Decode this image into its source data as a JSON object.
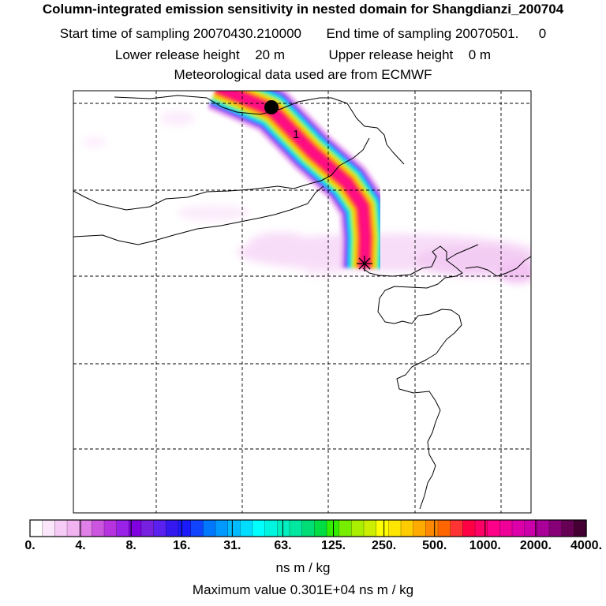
{
  "title": "Column-integrated emission sensitivity in nested domain for Shangdianzi_200704",
  "sampling": {
    "start_label": "Start time of sampling",
    "start_value": "20070430.210000",
    "end_label": "End time of sampling",
    "end_value": "20070501.",
    "end_value_suffix": "0"
  },
  "release": {
    "lower_label": "Lower release height",
    "lower_value": "20 m",
    "upper_label": "Upper release height",
    "upper_value": "0 m"
  },
  "meteo": "Meteorological data used are from ECMWF",
  "map": {
    "trajectory_marker_label": "1"
  },
  "colorbar": {
    "tick_labels": [
      "0.",
      "4.",
      "8.",
      "16.",
      "31.",
      "63.",
      "125.",
      "250.",
      "500.",
      "1000.",
      "2000.",
      "4000."
    ],
    "colors": [
      "#ffffff",
      "#fbe6fb",
      "#f6ccf6",
      "#f0b3f0",
      "#e080e8",
      "#cc55e0",
      "#b833e0",
      "#9922e8",
      "#8000e0",
      "#7720e0",
      "#5a20f0",
      "#3318f0",
      "#1a1aff",
      "#1144ff",
      "#0077ff",
      "#0099ff",
      "#00bbff",
      "#00ddff",
      "#00ffff",
      "#00f5e0",
      "#00eec0",
      "#00e8a0",
      "#00dd77",
      "#00dd44",
      "#33ee00",
      "#77ee00",
      "#aaee00",
      "#ccee00",
      "#ffff00",
      "#ffe600",
      "#ffcc00",
      "#ffaa00",
      "#ff8800",
      "#ff6600",
      "#ff3333",
      "#ff0044",
      "#ff0066",
      "#ff0088",
      "#ee0099",
      "#dd00aa",
      "#cc00aa",
      "#aa0099",
      "#880077",
      "#660055",
      "#440033"
    ]
  },
  "units": "ns m / kg",
  "max_label": "Maximum value",
  "max_value": "0.301E+04 ns m / kg"
}
